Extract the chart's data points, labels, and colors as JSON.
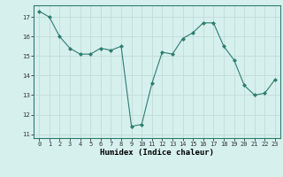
{
  "x": [
    0,
    1,
    2,
    3,
    4,
    5,
    6,
    7,
    8,
    9,
    10,
    11,
    12,
    13,
    14,
    15,
    16,
    17,
    18,
    19,
    20,
    21,
    22,
    23
  ],
  "y": [
    17.3,
    17.0,
    16.0,
    15.4,
    15.1,
    15.1,
    15.4,
    15.3,
    15.5,
    11.4,
    11.5,
    13.6,
    15.2,
    15.1,
    15.9,
    16.2,
    16.7,
    16.7,
    15.5,
    14.8,
    13.5,
    13.0,
    13.1,
    13.8
  ],
  "ylim": [
    10.8,
    17.6
  ],
  "yticks": [
    11,
    12,
    13,
    14,
    15,
    16,
    17
  ],
  "xticks": [
    0,
    1,
    2,
    3,
    4,
    5,
    6,
    7,
    8,
    9,
    10,
    11,
    12,
    13,
    14,
    15,
    16,
    17,
    18,
    19,
    20,
    21,
    22,
    23
  ],
  "xlabel": "Humidex (Indice chaleur)",
  "line_color": "#2d7d6e",
  "marker": "D",
  "marker_size": 2,
  "bg_color": "#d6f0ee",
  "grid_color": "#c4dbd8",
  "fig_bg": "#d6f0ee",
  "spine_color": "#2d7d6e"
}
